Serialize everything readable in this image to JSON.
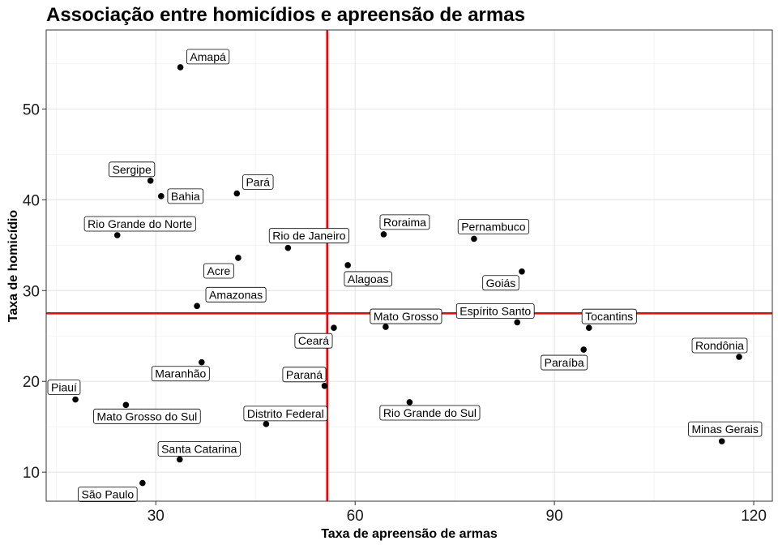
{
  "chart_data": {
    "type": "scatter",
    "title": "Associação entre homicídios e apreensão de armas",
    "xlabel": "Taxa de apreensão de armas",
    "ylabel": "Taxa de homicídio",
    "xlim": [
      13.5,
      122.8
    ],
    "ylim": [
      6.8,
      58.7
    ],
    "xticks": [
      30,
      60,
      90,
      120
    ],
    "yticks": [
      10,
      20,
      30,
      40,
      50
    ],
    "grid": true,
    "reference_lines": {
      "x": 55.8,
      "y": 27.5,
      "color": "#ff0000"
    },
    "point_color": "#000000",
    "points": [
      {
        "name": "Amapá",
        "x": 33.7,
        "y": 54.6
      },
      {
        "name": "Sergipe",
        "x": 29.2,
        "y": 42.1
      },
      {
        "name": "Bahia",
        "x": 30.8,
        "y": 40.4
      },
      {
        "name": "Pará",
        "x": 42.2,
        "y": 40.7
      },
      {
        "name": "Rio Grande do Norte",
        "x": 24.2,
        "y": 36.1
      },
      {
        "name": "Rio de Janeiro",
        "x": 49.9,
        "y": 34.7
      },
      {
        "name": "Acre",
        "x": 42.4,
        "y": 33.6
      },
      {
        "name": "Alagoas",
        "x": 58.9,
        "y": 32.8
      },
      {
        "name": "Roraima",
        "x": 64.3,
        "y": 36.2
      },
      {
        "name": "Pernambuco",
        "x": 77.9,
        "y": 35.7
      },
      {
        "name": "Goiás",
        "x": 85.1,
        "y": 32.1
      },
      {
        "name": "Amazonas",
        "x": 36.2,
        "y": 28.3
      },
      {
        "name": "Ceará",
        "x": 56.8,
        "y": 25.9
      },
      {
        "name": "Mato Grosso",
        "x": 64.6,
        "y": 26.0
      },
      {
        "name": "Espírito Santo",
        "x": 84.4,
        "y": 26.5
      },
      {
        "name": "Tocantins",
        "x": 95.2,
        "y": 25.9
      },
      {
        "name": "Paraíba",
        "x": 94.4,
        "y": 23.5
      },
      {
        "name": "Rondônia",
        "x": 117.8,
        "y": 22.7
      },
      {
        "name": "Maranhão",
        "x": 36.9,
        "y": 22.1
      },
      {
        "name": "Paraná",
        "x": 55.4,
        "y": 19.5
      },
      {
        "name": "Piauí",
        "x": 17.9,
        "y": 18.0
      },
      {
        "name": "Mato Grosso do Sul",
        "x": 25.5,
        "y": 17.4
      },
      {
        "name": "Rio Grande do Sul",
        "x": 68.2,
        "y": 17.7
      },
      {
        "name": "Distrito Federal",
        "x": 46.6,
        "y": 15.3
      },
      {
        "name": "Minas Gerais",
        "x": 115.2,
        "y": 13.4
      },
      {
        "name": "Santa Catarina",
        "x": 33.6,
        "y": 11.4
      },
      {
        "name": "São Paulo",
        "x": 28.0,
        "y": 8.8
      }
    ]
  }
}
